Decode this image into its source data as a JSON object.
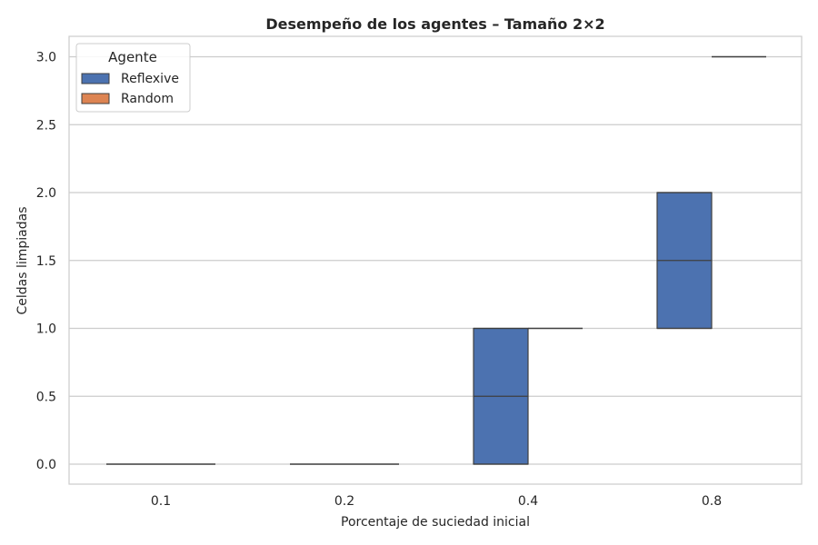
{
  "chart_data": {
    "type": "box",
    "title": "Desempeño de los agentes – Tamaño 2×2",
    "xlabel": "Porcentaje de suciedad inicial",
    "ylabel": "Celdas limpiadas",
    "categories": [
      "0.1",
      "0.2",
      "0.4",
      "0.8"
    ],
    "yticks": [
      "0.0",
      "0.5",
      "1.0",
      "1.5",
      "2.0",
      "2.5",
      "3.0"
    ],
    "ylim": [
      -0.15,
      3.15
    ],
    "grid": true,
    "legend": {
      "title": "Agente",
      "placement": "top-left"
    },
    "series": [
      {
        "name": "Reflexive",
        "color": "#4c72b0",
        "boxes": [
          {
            "category": "0.1",
            "min": 0,
            "q1": 0,
            "median": 0,
            "q3": 0,
            "max": 0
          },
          {
            "category": "0.2",
            "min": 0,
            "q1": 0,
            "median": 0,
            "q3": 0,
            "max": 0
          },
          {
            "category": "0.4",
            "min": 0,
            "q1": 0,
            "median": 0.5,
            "q3": 1,
            "max": 1
          },
          {
            "category": "0.8",
            "min": 1,
            "q1": 1,
            "median": 1.5,
            "q3": 2,
            "max": 2
          }
        ]
      },
      {
        "name": "Random",
        "color": "#dd8452",
        "boxes": [
          {
            "category": "0.1",
            "min": 0,
            "q1": 0,
            "median": 0,
            "q3": 0,
            "max": 0
          },
          {
            "category": "0.2",
            "min": 0,
            "q1": 0,
            "median": 0,
            "q3": 0,
            "max": 0
          },
          {
            "category": "0.4",
            "min": 1,
            "q1": 1,
            "median": 1,
            "q3": 1,
            "max": 1
          },
          {
            "category": "0.8",
            "min": 3,
            "q1": 3,
            "median": 3,
            "q3": 3,
            "max": 3
          }
        ]
      }
    ]
  }
}
